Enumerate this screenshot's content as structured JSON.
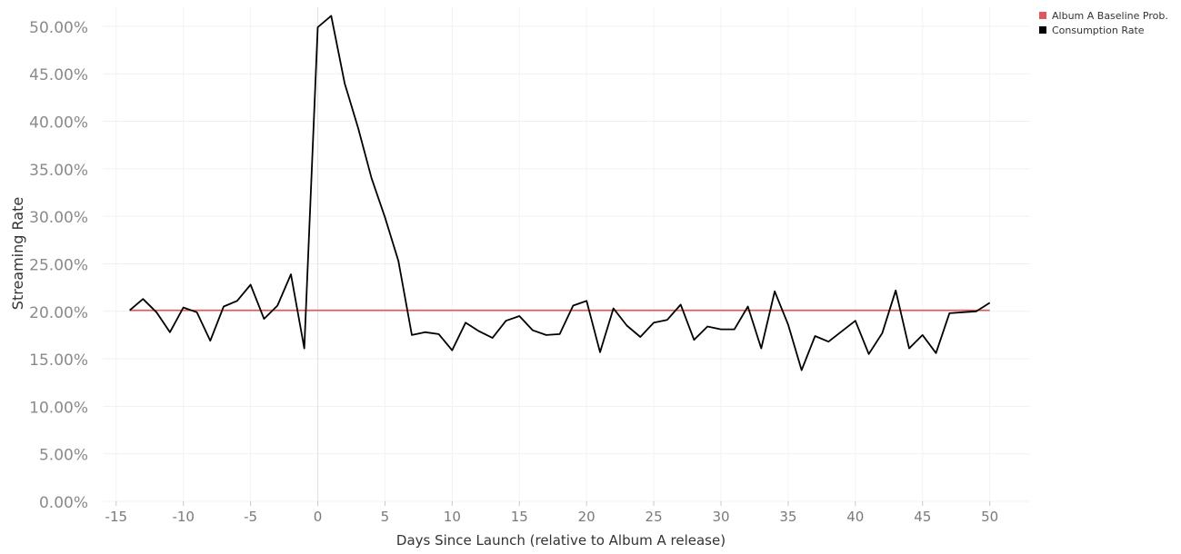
{
  "chart_data": {
    "type": "line",
    "xlabel": "Days Since Launch (relative to Album A release)",
    "ylabel": "Streaming Rate",
    "xlim": [
      -16,
      53
    ],
    "ylim": [
      0,
      0.52
    ],
    "x_ticks": [
      -15,
      -10,
      -5,
      0,
      5,
      10,
      15,
      20,
      25,
      30,
      35,
      40,
      45,
      50
    ],
    "y_ticks": [
      0,
      0.05,
      0.1,
      0.15,
      0.2,
      0.25,
      0.3,
      0.35,
      0.4,
      0.45,
      0.5
    ],
    "y_tick_labels": [
      "0.00%",
      "5.00%",
      "10.00%",
      "15.00%",
      "20.00%",
      "25.00%",
      "30.00%",
      "35.00%",
      "40.00%",
      "45.00%",
      "50.00%"
    ],
    "x_tick_labels": [
      "-15",
      "-10",
      "-5",
      "0",
      "5",
      "10",
      "15",
      "20",
      "25",
      "30",
      "35",
      "40",
      "45",
      "50"
    ],
    "grid": true,
    "legend_position": "top-right",
    "series": [
      {
        "name": "Album A Baseline Prob.",
        "color": "#e15759",
        "x": [
          -14,
          50
        ],
        "values": [
          0.201,
          0.201
        ]
      },
      {
        "name": "Consumption Rate",
        "color": "#000000",
        "x": [
          -14,
          -13,
          -12,
          -11,
          -10,
          -9,
          -8,
          -7,
          -6,
          -5,
          -4,
          -3,
          -2,
          -1,
          0,
          1,
          2,
          3,
          4,
          5,
          6,
          7,
          8,
          9,
          10,
          11,
          12,
          13,
          14,
          15,
          16,
          17,
          18,
          19,
          20,
          21,
          22,
          23,
          24,
          25,
          26,
          27,
          28,
          29,
          30,
          31,
          32,
          33,
          34,
          35,
          36,
          37,
          38,
          39,
          40,
          41,
          42,
          43,
          44,
          45,
          46,
          47,
          48,
          49,
          50
        ],
        "values": [
          0.201,
          0.213,
          0.199,
          0.178,
          0.204,
          0.199,
          0.169,
          0.205,
          0.211,
          0.228,
          0.192,
          0.206,
          0.239,
          0.161,
          0.499,
          0.511,
          0.44,
          0.393,
          0.34,
          0.299,
          0.253,
          0.175,
          0.178,
          0.176,
          0.159,
          0.188,
          0.179,
          0.172,
          0.19,
          0.195,
          0.18,
          0.175,
          0.176,
          0.206,
          0.211,
          0.157,
          0.203,
          0.185,
          0.173,
          0.188,
          0.191,
          0.207,
          0.17,
          0.184,
          0.181,
          0.181,
          0.205,
          0.161,
          0.221,
          0.186,
          0.138,
          0.174,
          0.168,
          0.179,
          0.19,
          0.155,
          0.177,
          0.222,
          0.161,
          0.175,
          0.156,
          0.198,
          0.199,
          0.2,
          0.209
        ]
      }
    ]
  }
}
